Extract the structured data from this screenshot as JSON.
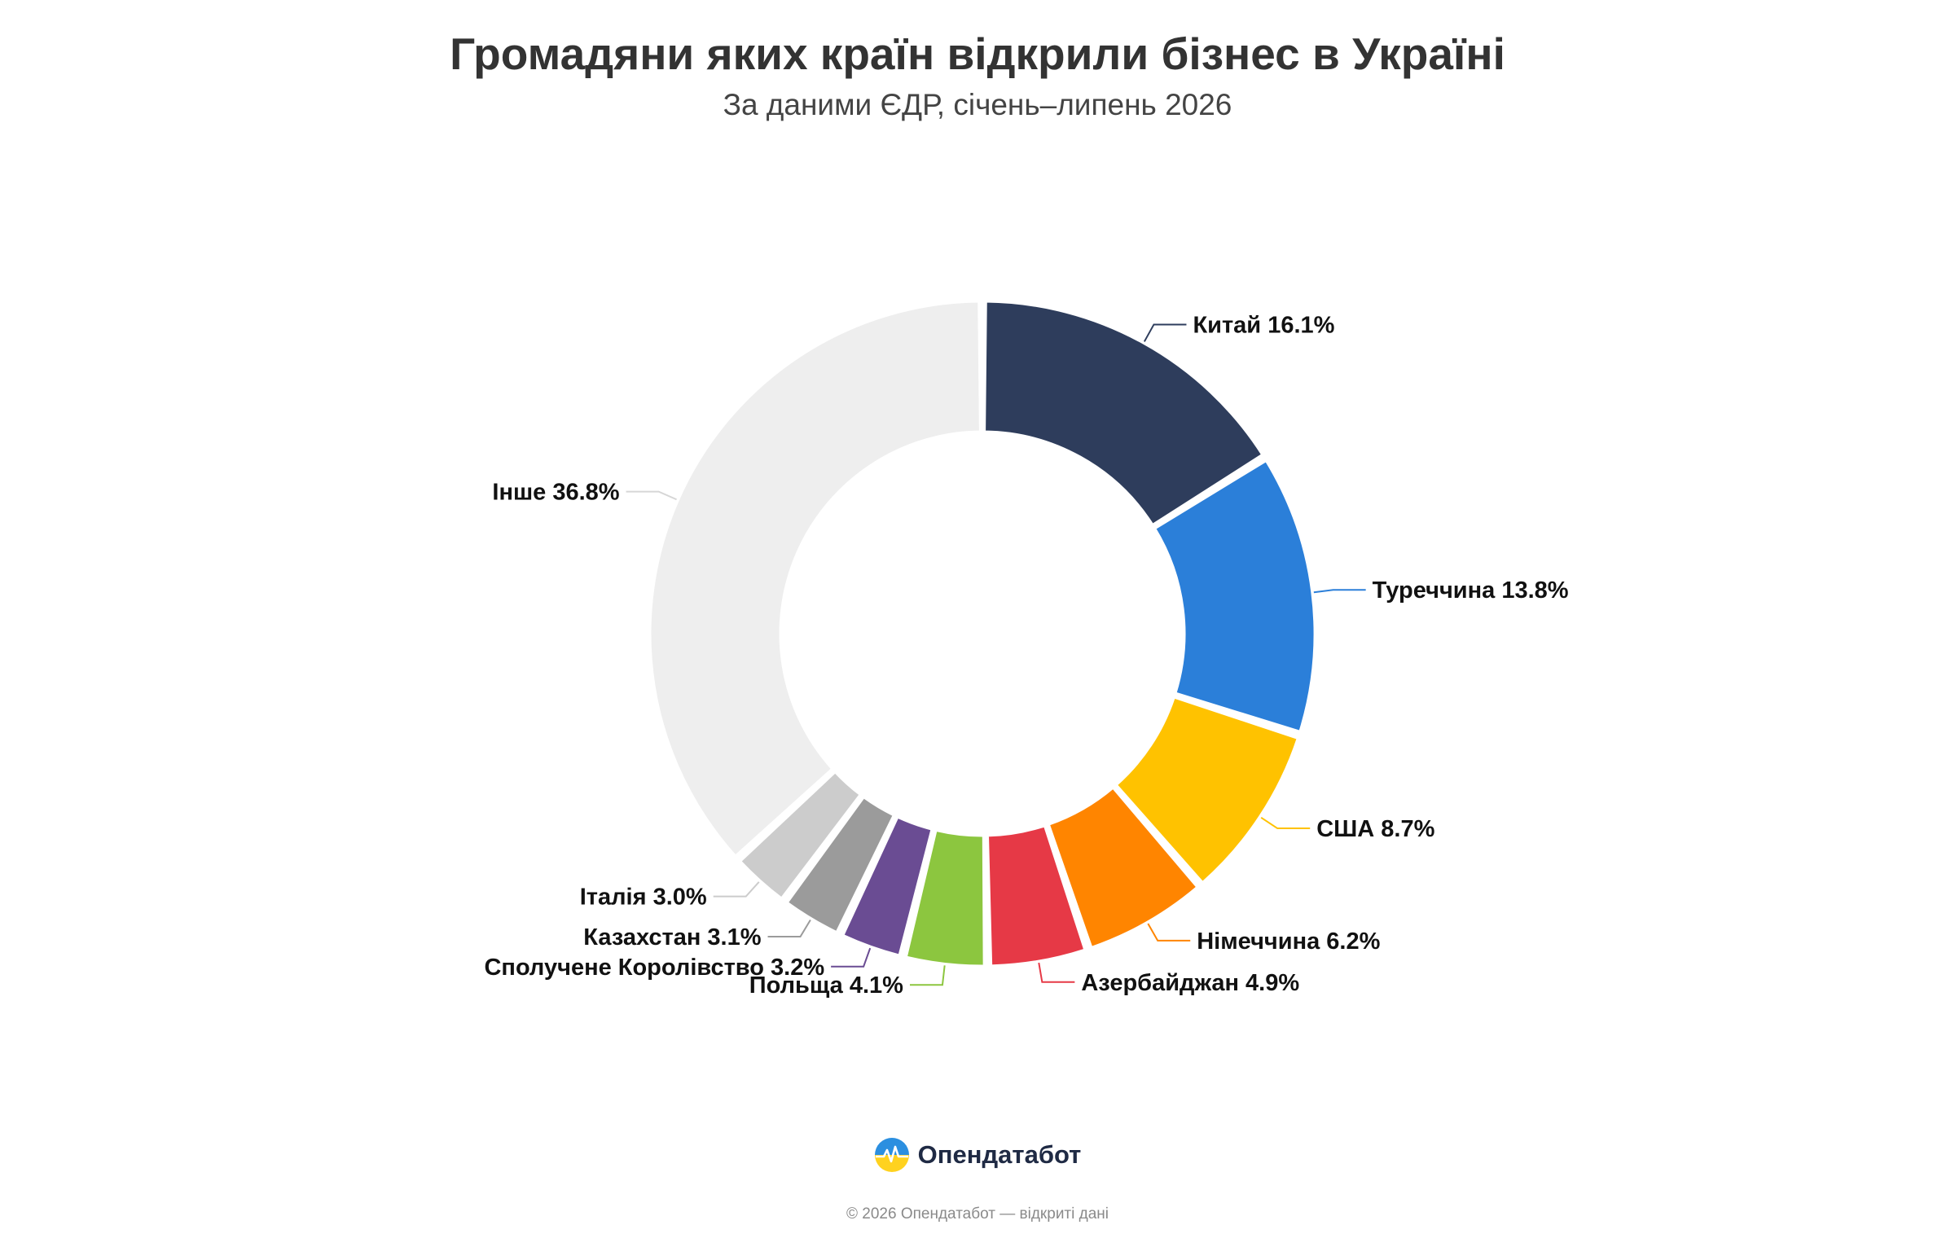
{
  "chart_data": {
    "type": "pie",
    "title": "Громадяни яких країн відкрили бізнес в Україні",
    "subtitle": "За даними ЄДР, січень–липень 2026",
    "unit": "%",
    "categories": [
      "Китай",
      "Туреччина",
      "США",
      "Німеччина",
      "Азербайджан",
      "Польща",
      "Сполучене Королівство",
      "Казахстан",
      "Італія",
      "Інше"
    ],
    "values": [
      16.1,
      13.8,
      8.7,
      6.2,
      4.9,
      4.1,
      3.2,
      3.1,
      3.0,
      36.8
    ],
    "labels": [
      "Китай 16.1%",
      "Туреччина 13.8%",
      "США 8.7%",
      "Німеччина 6.2%",
      "Азербайджан 4.9%",
      "Польща 4.1%",
      "Сполучене Королівство 3.2%",
      "Казахстан 3.1%",
      "Італія 3.0%",
      "Інше 36.8%"
    ],
    "colors": [
      "#2e3d5c",
      "#2b7fd9",
      "#ffc200",
      "#ff8500",
      "#e63946",
      "#8cc63f",
      "#6a4c93",
      "#9b9b9b",
      "#cccccc",
      "#eeeeee"
    ],
    "donut": true,
    "legend": "none"
  },
  "brand": {
    "name": "Опендатабот",
    "logo_icon": "opendatabot-logo-icon"
  },
  "footer": {
    "text": "© 2026 Опендатабот — відкриті дані"
  }
}
